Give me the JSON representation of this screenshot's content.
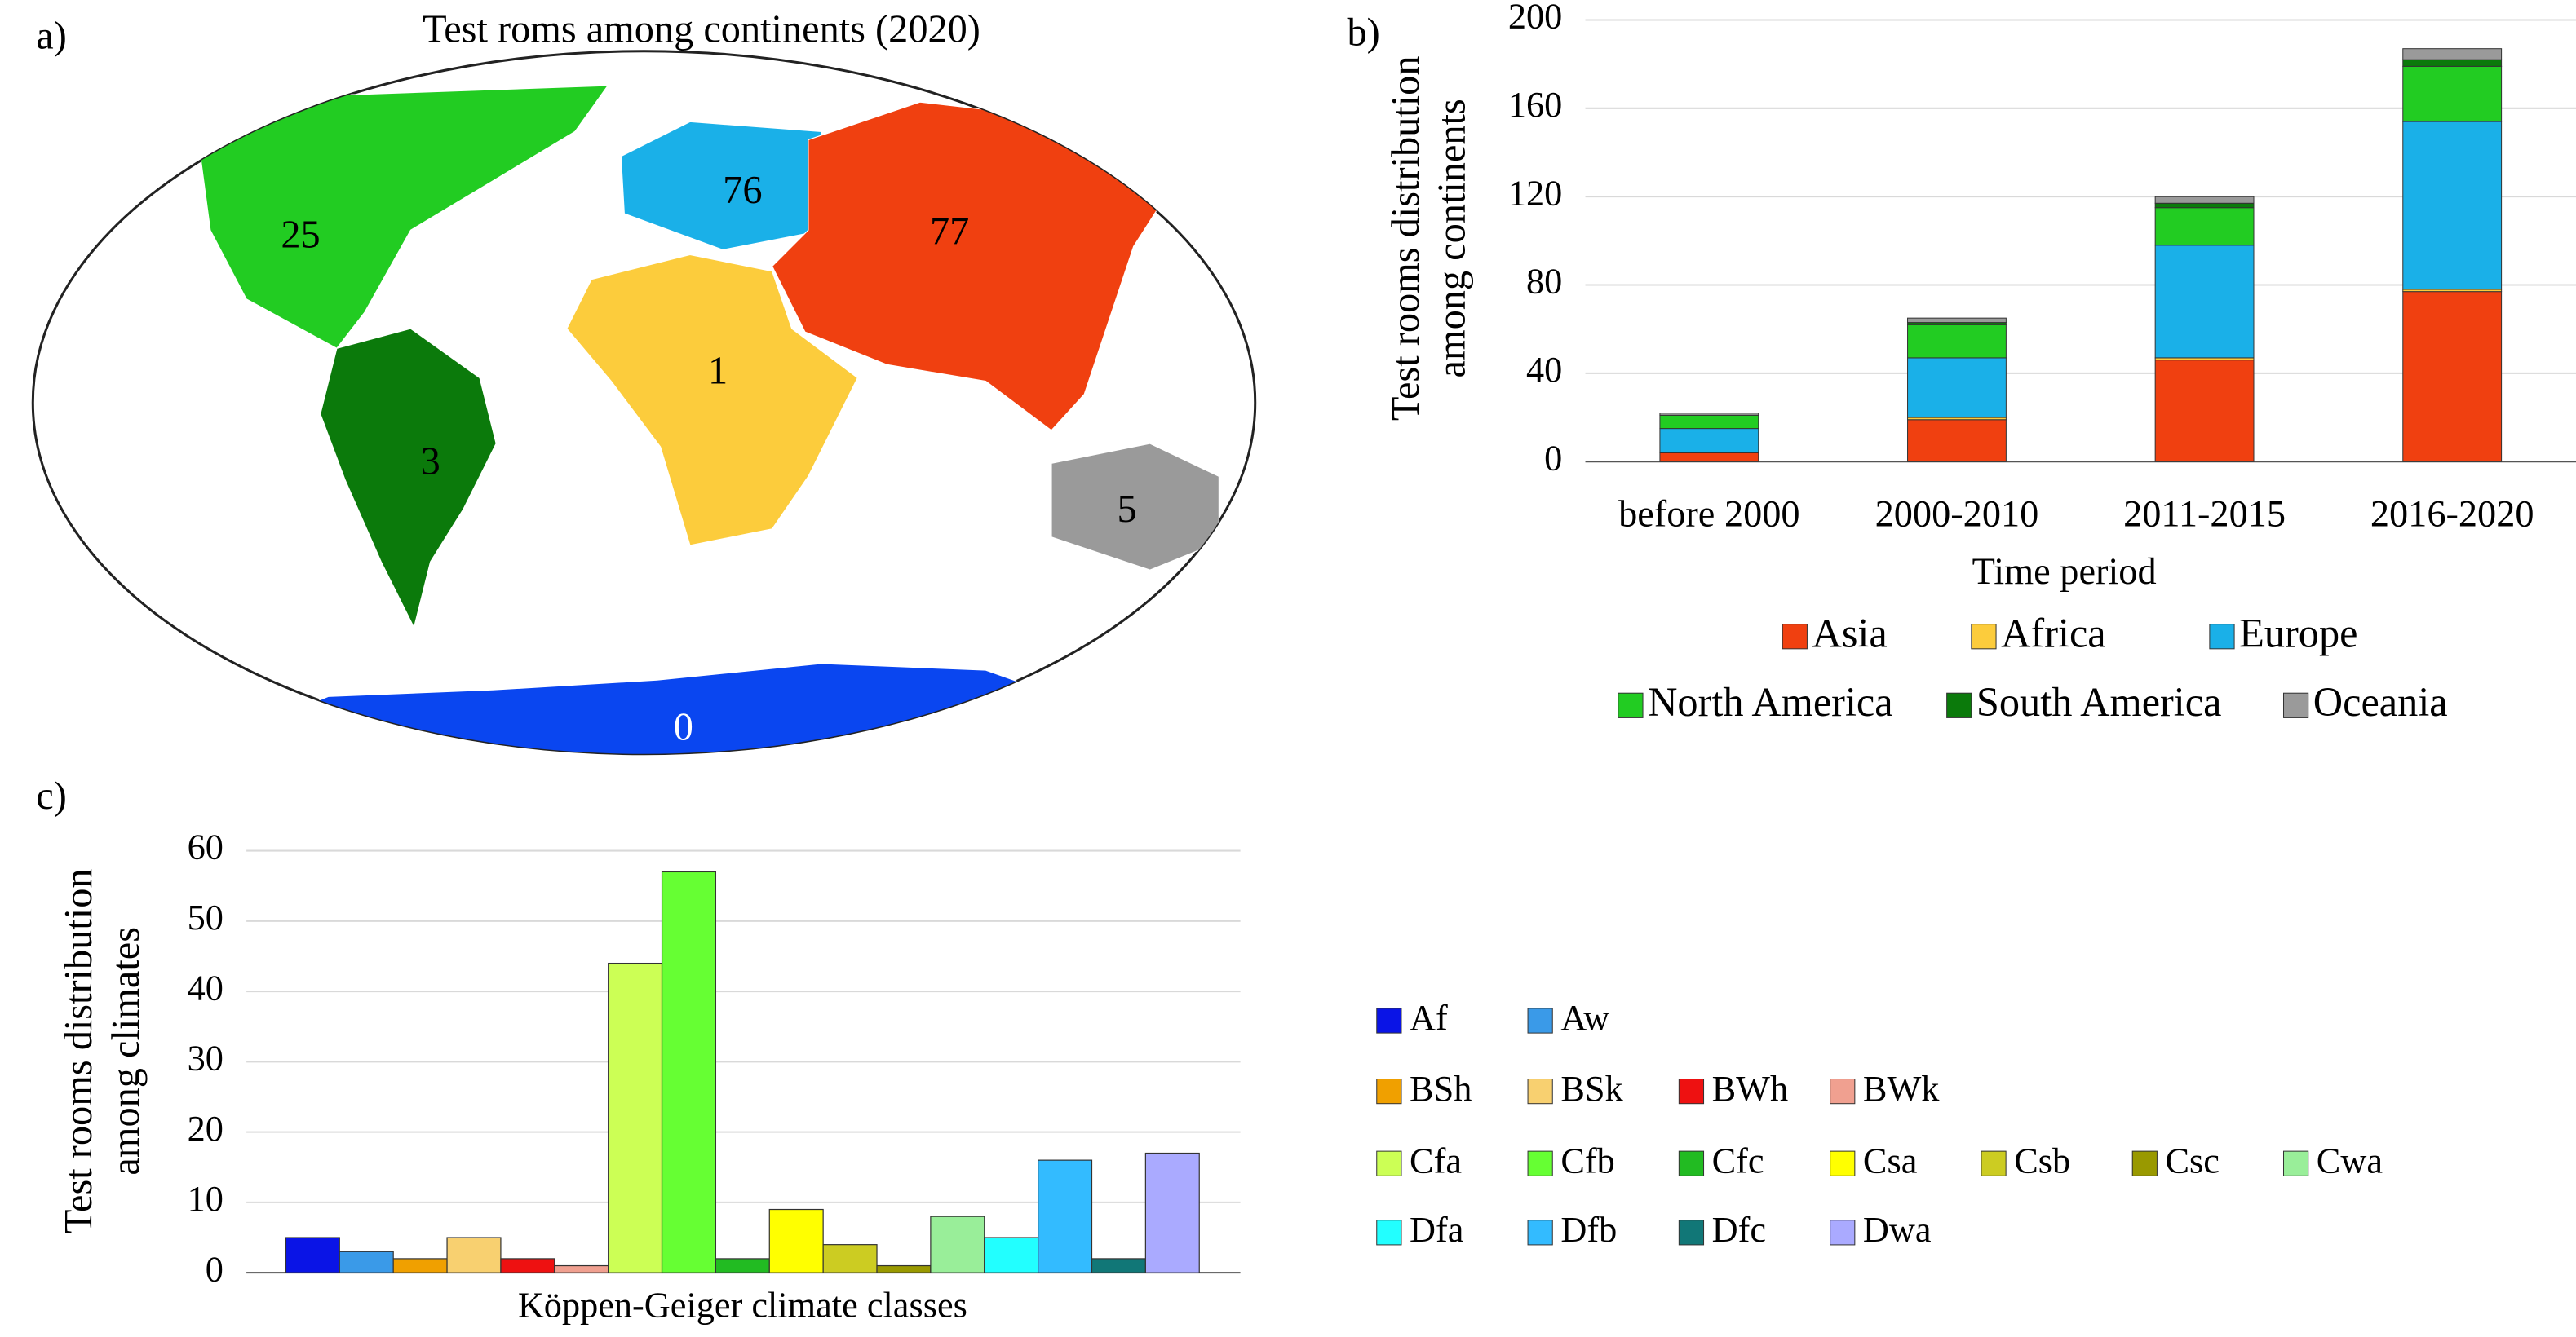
{
  "chart_data": [
    {
      "type": "map",
      "panel": "a)",
      "title": "Test roms among continents (2020)",
      "regions": [
        {
          "value": 25,
          "color": "#22cc22"
        },
        {
          "value": 76,
          "color": "#1ab0e8"
        },
        {
          "value": 77,
          "color": "#f04010"
        },
        {
          "value": 1,
          "color": "#fccc3c"
        },
        {
          "value": 3,
          "color": "#0b7a0b"
        },
        {
          "value": 5,
          "color": "#9a9a9a"
        },
        {
          "value": 0,
          "color": "#0a46f0"
        }
      ]
    },
    {
      "type": "stacked_bar",
      "panel": "b)",
      "categories": [
        "before 2000",
        "2000-2010",
        "2011-2015",
        "2016-2020"
      ],
      "series": [
        {
          "name": "Asia",
          "color": "#f04010",
          "values": [
            4,
            19,
            46,
            77
          ]
        },
        {
          "name": "Africa",
          "color": "#fccc3c",
          "values": [
            0,
            1,
            1,
            1
          ]
        },
        {
          "name": "Europe",
          "color": "#1ab0e8",
          "values": [
            11,
            27,
            51,
            76
          ]
        },
        {
          "name": "North America",
          "color": "#22cc22",
          "values": [
            6,
            15,
            17,
            25
          ]
        },
        {
          "name": "South  America",
          "color": "#0b7a0b",
          "values": [
            0,
            1,
            2,
            3
          ]
        },
        {
          "name": "Oceania",
          "color": "#9a9a9a",
          "values": [
            1,
            2,
            3,
            5
          ]
        }
      ],
      "xlabel": "Time period",
      "ylabel": [
        "Test rooms distribution",
        "among continents"
      ],
      "ylim": [
        0,
        200
      ],
      "yticks": [
        0,
        40,
        80,
        120,
        160,
        200
      ],
      "grid": true
    },
    {
      "type": "bar",
      "panel": "c)",
      "categories": [
        "Af",
        "Aw",
        "BSh",
        "BSk",
        "BWh",
        "BWk",
        "Cfa",
        "Cfb",
        "Cfc",
        "Csa",
        "Csb",
        "Csc",
        "Cwa",
        "Dfa",
        "Dfb",
        "Dfc",
        "Dwa"
      ],
      "values": [
        5,
        3,
        2,
        5,
        2,
        1,
        44,
        57,
        2,
        9,
        4,
        1,
        8,
        5,
        16,
        2,
        17
      ],
      "colors": [
        "#0a14e6",
        "#3a9ae8",
        "#f0a000",
        "#f8d070",
        "#ee1111",
        "#f0a090",
        "#ccff55",
        "#66ff33",
        "#22bb22",
        "#ffff00",
        "#cccc22",
        "#999900",
        "#99ee99",
        "#22ffff",
        "#33bbff",
        "#117777",
        "#aaaaff"
      ],
      "xlabel": "Köppen-Geiger climate classes",
      "ylabel": [
        "Test rooms distribution",
        "among climates"
      ],
      "ylim": [
        0,
        60
      ],
      "yticks": [
        0,
        10,
        20,
        30,
        40,
        50,
        60
      ],
      "grid": true
    }
  ]
}
